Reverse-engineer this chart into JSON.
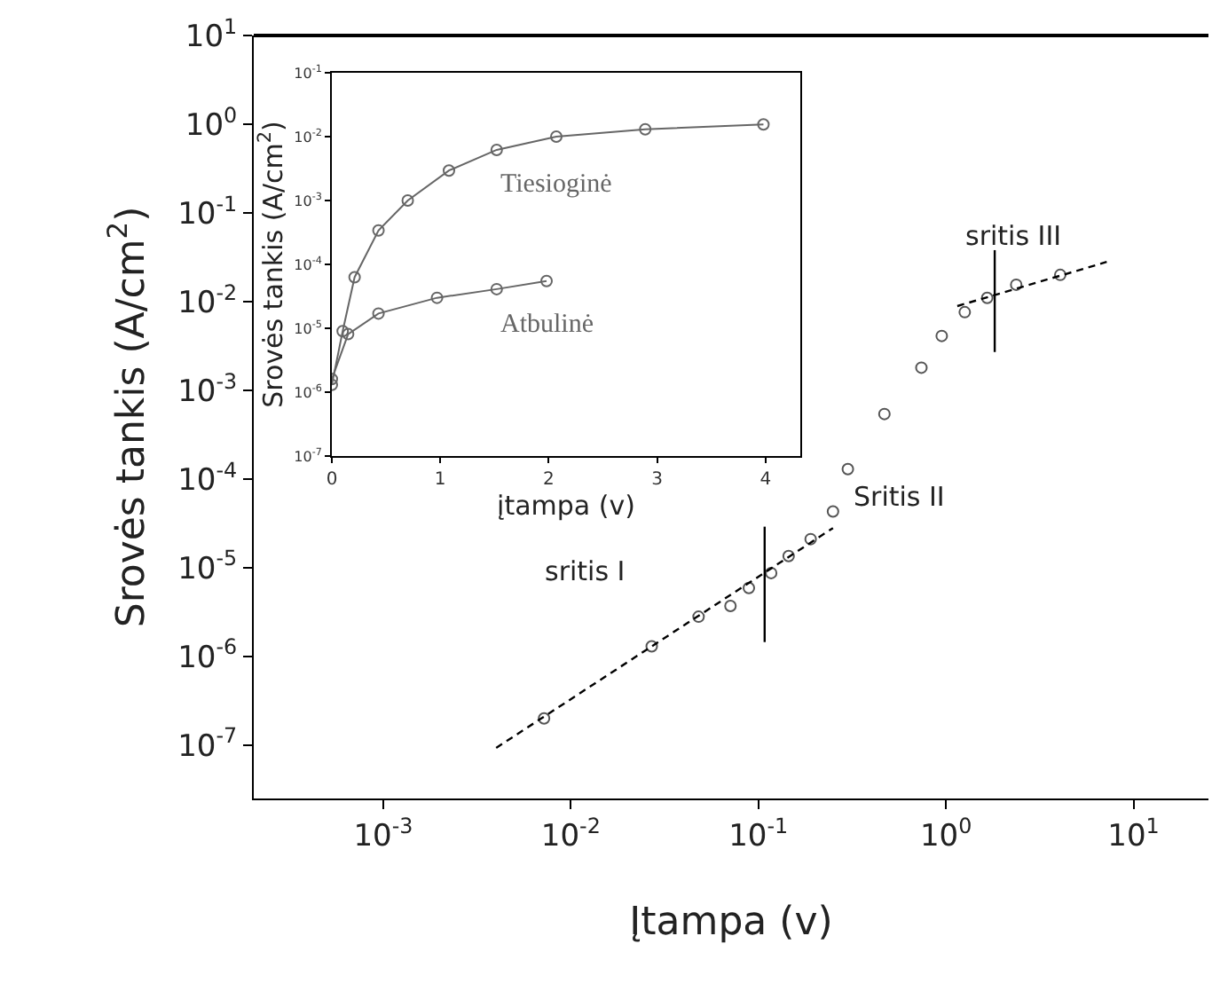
{
  "chart_data": [
    {
      "type": "scatter",
      "xlabel": "Įtampa (v)",
      "ylabel": "Srovės tankis (A/cm$^{2}$)",
      "log": "xy",
      "grid": false,
      "legend": false,
      "marker": "circle",
      "xlim": [
        0.000204,
        25.1
      ],
      "ylim": [
        2.5e-08,
        10
      ],
      "xticks": [
        {
          "value": 0.001,
          "label": "10$^{-3}$"
        },
        {
          "value": 0.01,
          "label": "10$^{-2}$"
        },
        {
          "value": 0.1,
          "label": "10$^{-1}$"
        },
        {
          "value": 1,
          "label": "10$^{0}$"
        },
        {
          "value": 10,
          "label": "10$^{1}$"
        }
      ],
      "yticks": [
        {
          "value": 1e-07,
          "label": "10$^{-7}$"
        },
        {
          "value": 1e-06,
          "label": "10$^{-6}$"
        },
        {
          "value": 1e-05,
          "label": "10$^{-5}$"
        },
        {
          "value": 0.0001,
          "label": "10$^{-4}$"
        },
        {
          "value": 0.001,
          "label": "10$^{-3}$"
        },
        {
          "value": 0.01,
          "label": "10$^{-2}$"
        },
        {
          "value": 0.1,
          "label": "10$^{-1}$"
        },
        {
          "value": 1,
          "label": "10$^{0}$"
        },
        {
          "value": 10,
          "label": "10$^{1}$"
        }
      ],
      "series": [
        {
          "type": "scatter",
          "marker": "circle",
          "color": "#555555",
          "x": [
            0.0072,
            0.027,
            0.048,
            0.071,
            0.089,
            0.117,
            0.145,
            0.19,
            0.25,
            0.3,
            0.47,
            0.74,
            0.95,
            1.26,
            1.66,
            2.37,
            4.07
          ],
          "values": [
            2e-07,
            1.3e-06,
            2.8e-06,
            3.7e-06,
            5.9e-06,
            8.7e-06,
            1.35e-05,
            2.1e-05,
            4.3e-05,
            0.000129,
            0.00054,
            0.0018,
            0.0041,
            0.0076,
            0.011,
            0.0155,
            0.02
          ]
        },
        {
          "type": "line",
          "line_style": "dashed",
          "marker": "none",
          "color": "#000000",
          "x": [
            0.004,
            0.25
          ],
          "values": [
            9.3e-08,
            2.8e-05
          ]
        },
        {
          "type": "line",
          "line_style": "dashed",
          "marker": "none",
          "color": "#000000",
          "x": [
            1.15,
            7.2
          ],
          "values": [
            0.0089,
            0.028
          ]
        },
        {
          "type": "line",
          "line_style": "solid",
          "marker": "none",
          "color": "#000000",
          "x": [
            0.108,
            0.108
          ],
          "values": [
            2.9e-05,
            1.45e-06
          ]
        },
        {
          "type": "line",
          "line_style": "solid",
          "marker": "none",
          "color": "#000000",
          "x": [
            1.82,
            1.82
          ],
          "values": [
            0.038,
            0.0027
          ]
        }
      ],
      "annotations": [
        "sritis I",
        "Sritis II",
        "sritis III"
      ]
    },
    {
      "type": "line",
      "xlabel": "įtampa (v)",
      "ylabel": "Srovės tankis (A/cm$^{2}$)",
      "log": "y",
      "grid": false,
      "legend": false,
      "marker": "circle",
      "xlim": [
        0,
        4.32
      ],
      "ylim": [
        1e-07,
        0.1
      ],
      "xticks": [
        0,
        1,
        2,
        3,
        4
      ],
      "yticks": [
        {
          "value": 1e-07,
          "label": "10$^{-7}$"
        },
        {
          "value": 1e-06,
          "label": "10$^{-6}$"
        },
        {
          "value": 1e-05,
          "label": "10$^{-5}$"
        },
        {
          "value": 0.0001,
          "label": "10$^{-4}$"
        },
        {
          "value": 0.001,
          "label": "10$^{-3}$"
        },
        {
          "value": 0.01,
          "label": "10$^{-2}$"
        },
        {
          "value": 0.1,
          "label": "10$^{-1}$"
        }
      ],
      "series": [
        {
          "name": "Tiesioginė",
          "color": "#666666",
          "x": [
            0,
            0.1,
            0.21,
            0.43,
            0.7,
            1.08,
            1.52,
            2.07,
            2.89,
            3.98
          ],
          "values": [
            1.3e-06,
            9e-06,
            6.3e-05,
            0.00034,
            0.001,
            0.00295,
            0.0062,
            0.01,
            0.013,
            0.0155
          ]
        },
        {
          "name": "Atbulinė",
          "color": "#666666",
          "x": [
            0,
            0.15,
            0.43,
            0.97,
            1.52,
            1.98
          ],
          "values": [
            1.6e-06,
            8.1e-06,
            1.7e-05,
            3e-05,
            4.1e-05,
            5.5e-05
          ]
        }
      ]
    }
  ]
}
